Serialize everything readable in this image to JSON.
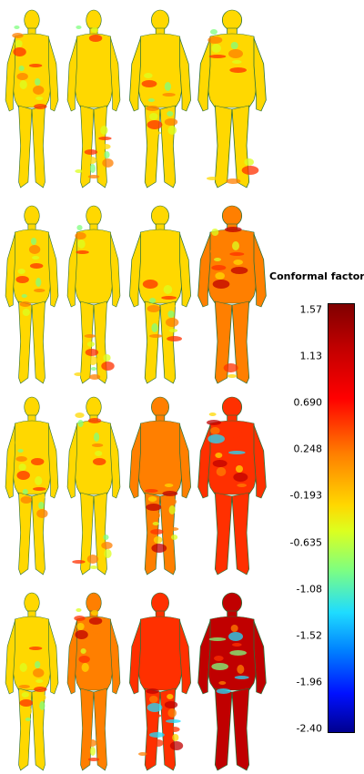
{
  "colorbar": {
    "title": "Conformal factor",
    "ticks": [
      "1.57",
      "1.13",
      "0.690",
      "0.248",
      "-0.193",
      "-0.635",
      "-1.08",
      "-1.52",
      "-1.96",
      "-2.40"
    ],
    "colors": [
      "#7f0000",
      "#ff0000",
      "#ff7f00",
      "#ffd800",
      "#7fff7f",
      "#1fdcff",
      "#0080ff",
      "#00008f"
    ]
  },
  "grid": {
    "rows": 4,
    "columns": 4,
    "rows_heat": [
      [
        0.55,
        0.45,
        0.5,
        0.55
      ],
      [
        0.55,
        0.5,
        0.55,
        0.6
      ],
      [
        0.45,
        0.55,
        0.65,
        0.75
      ],
      [
        0.55,
        0.65,
        0.8,
        0.9
      ]
    ]
  }
}
